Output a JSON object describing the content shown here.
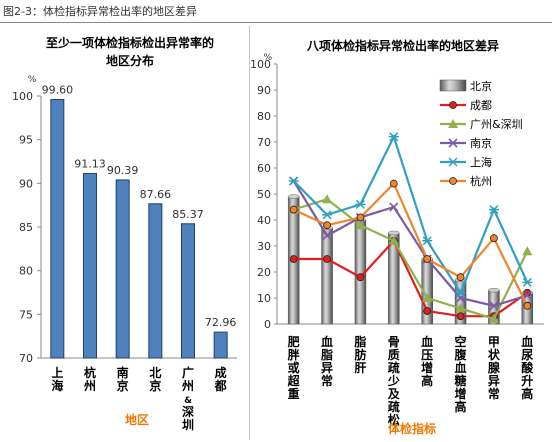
{
  "figure": {
    "title": "图2-3：体检指标异常检出率的地区差异"
  },
  "chart_data": [
    {
      "type": "bar",
      "title_line1": "至少一项体检指标检出异常率的",
      "title_line2": "地区分布",
      "unit_label": "%",
      "xlabel": "地区",
      "categories": [
        "上海",
        "杭州",
        "南京",
        "北京",
        "广州&深圳",
        "成都"
      ],
      "values": [
        99.6,
        91.13,
        90.39,
        87.66,
        85.37,
        72.96
      ],
      "value_labels": [
        "99.60",
        "91.13",
        "90.39",
        "87.66",
        "85.37",
        "72.96"
      ],
      "ylim": [
        70,
        100
      ],
      "yticks": [
        "70",
        "75",
        "80",
        "85",
        "90",
        "95",
        "100"
      ],
      "bar_color": "#4f81bd"
    },
    {
      "type": "bar+line",
      "title": "八项体检指标异常检出率的地区差异",
      "unit_label": "%",
      "xlabel": "体检指标",
      "categories": [
        "肥胖或超重",
        "血脂异常",
        "脂肪肝",
        "骨质疏少及疏松",
        "血压增高",
        "空腹血糖增高",
        "甲状腺异常",
        "血尿酸升高"
      ],
      "ylim": [
        0,
        100
      ],
      "yticks": [
        "0",
        "10",
        "20",
        "30",
        "40",
        "50",
        "60",
        "70",
        "80",
        "90",
        "100"
      ],
      "legend_position": "top-right",
      "bar_series": {
        "name": "北京",
        "color": "#8c8c8c",
        "values": [
          49,
          37,
          40,
          35,
          25,
          17,
          13,
          12
        ]
      },
      "line_series": [
        {
          "name": "成都",
          "color": "#e01f1f",
          "marker": "circle",
          "values": [
            25,
            25,
            18,
            32,
            5,
            3,
            3,
            12
          ]
        },
        {
          "name": "广州&深圳",
          "color": "#8fb04a",
          "marker": "triangle",
          "values": [
            44,
            48,
            38,
            32,
            10,
            6,
            2,
            28
          ]
        },
        {
          "name": "南京",
          "color": "#7c5ba6",
          "marker": "x",
          "values": [
            55,
            34,
            41,
            45,
            25,
            10,
            7,
            11
          ]
        },
        {
          "name": "上海",
          "color": "#2fa0c0",
          "marker": "star",
          "values": [
            55,
            42,
            46,
            72,
            32,
            12,
            44,
            16
          ]
        },
        {
          "name": "杭州",
          "color": "#f0852c",
          "marker": "circle",
          "values": [
            44,
            38,
            41,
            54,
            25,
            18,
            33,
            7
          ]
        }
      ]
    }
  ]
}
